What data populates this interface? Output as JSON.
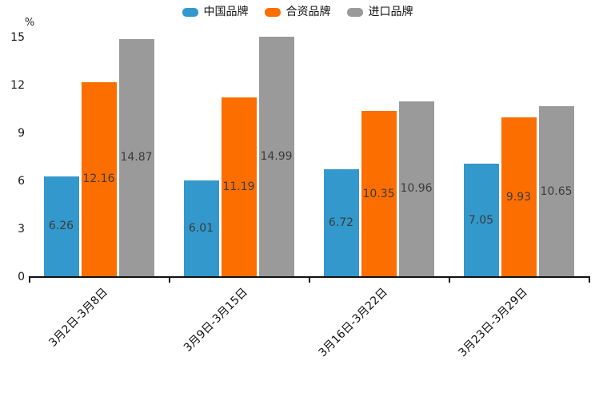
{
  "chart_data": {
    "type": "bar",
    "title": "",
    "xlabel": "",
    "ylabel": "%",
    "ylim": [
      0,
      15
    ],
    "yticks": [
      0,
      3,
      6,
      9,
      12,
      15
    ],
    "grid": false,
    "legend_position": "top-center",
    "value_labels": "inside-center",
    "categories": [
      "3月2日-3月8日",
      "3月9日-3月15日",
      "3月16日-3月22日",
      "3月23日-3月29日"
    ],
    "series": [
      {
        "name": "中国品牌",
        "color": "#3398CB",
        "values": [
          6.26,
          6.01,
          6.72,
          7.05
        ]
      },
      {
        "name": "合资品牌",
        "color": "#FC6E00",
        "values": [
          12.16,
          11.19,
          10.35,
          9.93
        ]
      },
      {
        "name": "进口品牌",
        "color": "#9A9A9A",
        "values": [
          14.87,
          14.99,
          10.96,
          10.65
        ]
      }
    ]
  },
  "colors": {
    "axis": "#111111",
    "tick_label": "#1a1a1a",
    "value_label": "#3c3c3c",
    "background": "#ffffff"
  }
}
